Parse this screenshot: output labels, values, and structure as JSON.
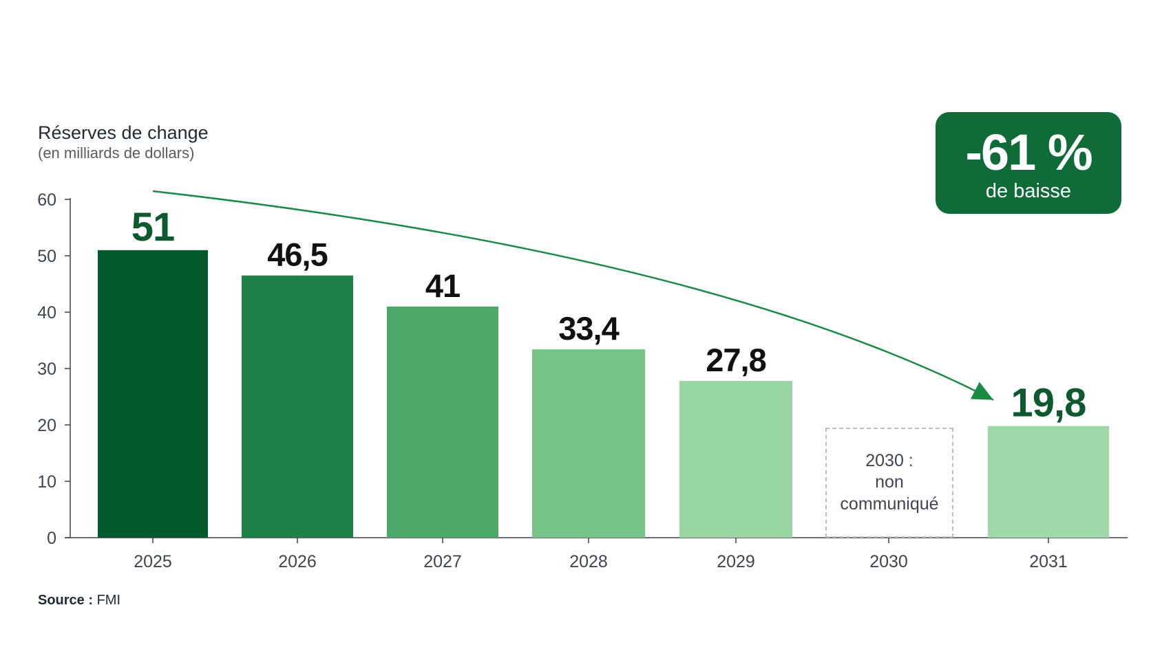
{
  "chart_data": {
    "type": "bar",
    "title": "Réserves de change",
    "subtitle": "(en milliards de dollars)",
    "categories": [
      "2025",
      "2026",
      "2027",
      "2028",
      "2029",
      "2030",
      "2031"
    ],
    "values": [
      51,
      46.5,
      41,
      33.4,
      27.8,
      null,
      19.8
    ],
    "value_labels": [
      "51",
      "46,5",
      "41",
      "33,4",
      "27,8",
      "",
      "19,8"
    ],
    "missing_note": "2030 :\nnon\ncommuniqué",
    "ylim": [
      0,
      60
    ],
    "yticks": [
      0,
      10,
      20,
      30,
      40,
      50,
      60
    ],
    "grid": false,
    "bar_colors": [
      "#025a2c",
      "#1e8048",
      "#4ca96a",
      "#76c388",
      "#98d6a3",
      "#ffffff",
      "#9ed8a8"
    ],
    "label_colors": [
      "#0d5a2f",
      "#111111",
      "#111111",
      "#111111",
      "#111111",
      "#111111",
      "#0d5a2f"
    ],
    "trend_arrow": {
      "from": "2025",
      "to": "2031",
      "color": "#1a8a45"
    }
  },
  "badge": {
    "value": "-61 %",
    "label": "de baisse",
    "color": "#0f6b38"
  },
  "source": {
    "label": "Source :",
    "text": "FMI"
  }
}
